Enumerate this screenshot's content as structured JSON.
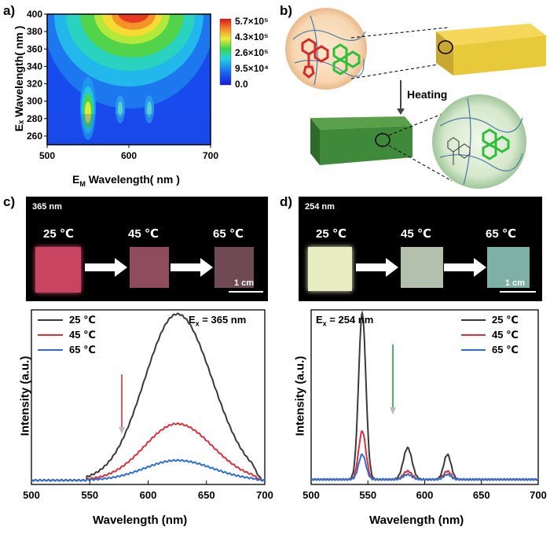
{
  "panel_labels": {
    "a": "a)",
    "b": "b)",
    "c": "c)",
    "d": "d)"
  },
  "panel_a": {
    "y_axis_title": "Eₓ Wavelength( nm )",
    "x_axis_title": "E",
    "x_axis_title_sub": "M",
    "x_axis_title_rest": " Wavelength( nm )",
    "colorbar_ticks": [
      "5.7×10⁵",
      "4.3×10⁵",
      "2.6×10⁵",
      "9.5×10⁴",
      "0.0"
    ]
  },
  "panel_b": {
    "heating_label": "Heating"
  },
  "panel_c": {
    "photo_wavelength": "365 nm",
    "temps": [
      "25 ℃",
      "45 ℃",
      "65 ℃"
    ],
    "scale_bar": "1 cm",
    "ex_label": "E",
    "ex_sub": "x",
    "ex_value": " = 365 nm"
  },
  "panel_d": {
    "photo_wavelength": "254 nm",
    "temps": [
      "25 ℃",
      "45 ℃",
      "65 ℃"
    ],
    "scale_bar": "1 cm",
    "ex_label": "E",
    "ex_sub": "x",
    "ex_value": " = 254 nm"
  },
  "colors": {
    "c25": "#3a3a3a",
    "c45": "#d9313d",
    "c65": "#2f6fd0",
    "heat": "#b0172a",
    "slab_yellow": "#e8c93a",
    "slab_green": "#3f8a3a"
  },
  "chart_data": [
    {
      "id": "a",
      "type": "heatmap",
      "title": "",
      "xlabel": "EM Wavelength( nm )",
      "ylabel": "Ex Wavelength( nm )",
      "xlim": [
        500,
        700
      ],
      "ylim": [
        250,
        400
      ],
      "x_ticks": [
        500,
        600,
        700
      ],
      "y_ticks": [
        260,
        280,
        300,
        320,
        340,
        360,
        380,
        400
      ],
      "colorbar_range": [
        0,
        570000
      ],
      "hotspots": [
        {
          "x": 600,
          "y": 395,
          "value": 570000
        },
        {
          "x": 545,
          "y": 290,
          "value": 230000
        },
        {
          "x": 585,
          "y": 290,
          "value": 60000
        },
        {
          "x": 620,
          "y": 290,
          "value": 60000
        }
      ]
    },
    {
      "id": "c",
      "type": "line",
      "xlabel": "Wavelength (nm)",
      "ylabel": "Intensity (a.u.)",
      "xlim": [
        500,
        700
      ],
      "x_ticks": [
        500,
        550,
        600,
        650,
        700
      ],
      "ylim": [
        0,
        1.05
      ],
      "legend": "top-left",
      "series": [
        {
          "name": "25 ℃",
          "peak_x": 625,
          "peak_y": 1.0,
          "onset": 555,
          "end": 698
        },
        {
          "name": "45 ℃",
          "peak_x": 625,
          "peak_y": 0.34,
          "onset": 555,
          "end": 698
        },
        {
          "name": "65 ℃",
          "peak_x": 625,
          "peak_y": 0.12,
          "onset": 555,
          "end": 698
        }
      ]
    },
    {
      "id": "d",
      "type": "line",
      "xlabel": "Wavelength (nm)",
      "ylabel": "Intensity (a.u.)",
      "xlim": [
        500,
        700
      ],
      "x_ticks": [
        500,
        550,
        600,
        650,
        700
      ],
      "ylim": [
        0,
        1.05
      ],
      "legend": "top-right",
      "peaks_nm": [
        545,
        585,
        620
      ],
      "series": [
        {
          "name": "25 ℃",
          "peaks": [
            1.0,
            0.19,
            0.15
          ]
        },
        {
          "name": "45 ℃",
          "peaks": [
            0.29,
            0.05,
            0.05
          ]
        },
        {
          "name": "65 ℃",
          "peaks": [
            0.15,
            0.03,
            0.03
          ]
        }
      ]
    }
  ]
}
